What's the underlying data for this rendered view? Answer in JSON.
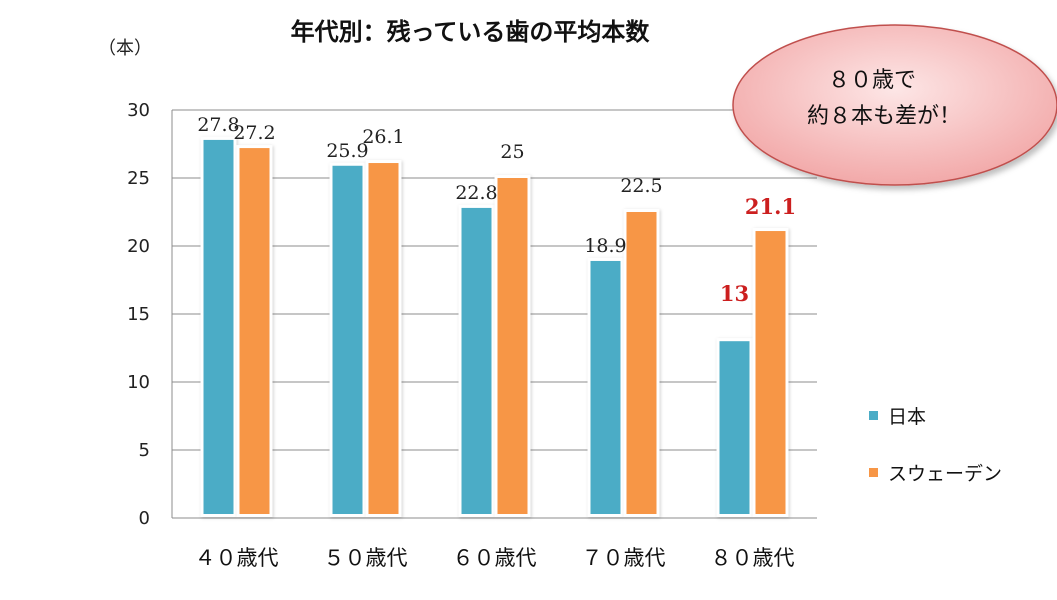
{
  "colors": {
    "japan": "#4bacc6",
    "sweden": "#f79646",
    "highlight": "#cc1f1f",
    "grid": "#8c8c8c",
    "callout_fill": "#f4b6b6",
    "callout_stroke": "#c0504d"
  },
  "chart_data": {
    "type": "bar",
    "title": "年代別：残っている歯の平均本数",
    "ylabel": "（本）",
    "xlabel": "",
    "ylim": [
      0,
      30
    ],
    "yticks": [
      0,
      5,
      10,
      15,
      20,
      25,
      30
    ],
    "categories": [
      "４０歳代",
      "５０歳代",
      "６０歳代",
      "７０歳代",
      "８０歳代"
    ],
    "series": [
      {
        "name": "日本",
        "values": [
          27.8,
          25.9,
          22.8,
          18.9,
          13
        ],
        "labels": [
          "27.8",
          "25.9",
          "22.8",
          "18.9",
          "13"
        ],
        "highlight": [
          false,
          false,
          false,
          false,
          true
        ]
      },
      {
        "name": "スウェーデン",
        "values": [
          27.2,
          26.1,
          25,
          22.5,
          21.1
        ],
        "labels": [
          "27.2",
          "26.1",
          "25",
          "22.5",
          "21.1"
        ],
        "highlight": [
          false,
          false,
          false,
          false,
          true
        ]
      }
    ],
    "legend_position": "right",
    "gridlines": true,
    "annotation": {
      "line1": "８０歳で",
      "line2": "約８本も差が！"
    }
  }
}
